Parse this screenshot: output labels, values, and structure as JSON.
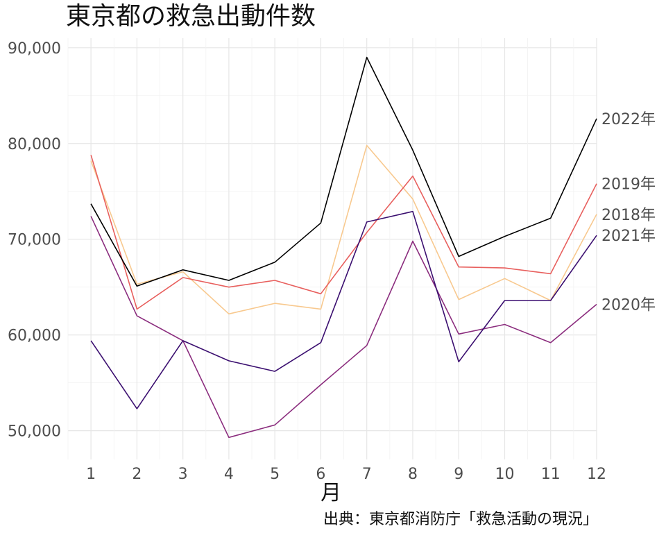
{
  "chart_data": {
    "type": "line",
    "title": "東京都の救急出動件数",
    "xlabel": "月",
    "ylabel": "",
    "caption": "出典：東京都消防庁「救急活動の現況」",
    "x": [
      1,
      2,
      3,
      4,
      5,
      6,
      7,
      8,
      9,
      10,
      11,
      12
    ],
    "x_tick_labels": [
      "1",
      "2",
      "3",
      "4",
      "5",
      "6",
      "7",
      "8",
      "9",
      "10",
      "11",
      "12"
    ],
    "xlim": [
      0.5,
      12
    ],
    "ylim": [
      47000,
      91000
    ],
    "y_ticks": [
      50000,
      60000,
      70000,
      80000,
      90000
    ],
    "y_tick_labels": [
      "50,000",
      "60,000",
      "70,000",
      "80,000",
      "90,000"
    ],
    "grid": true,
    "legend": "direct labels at right end of lines",
    "series": [
      {
        "name": "2018年",
        "color": "#f8c98f",
        "values": [
          78200,
          65300,
          66600,
          62200,
          63300,
          62700,
          79800,
          74200,
          63700,
          65900,
          63600,
          72600
        ]
      },
      {
        "name": "2019年",
        "color": "#e8605e",
        "values": [
          78800,
          62700,
          66000,
          65000,
          65700,
          64300,
          70700,
          76600,
          67100,
          67000,
          66400,
          75800
        ]
      },
      {
        "name": "2020年",
        "color": "#8b2d7e",
        "values": [
          72400,
          62000,
          59400,
          49300,
          50600,
          54800,
          58900,
          69800,
          60100,
          61100,
          59200,
          63200
        ]
      },
      {
        "name": "2021年",
        "color": "#3b0f70",
        "values": [
          59400,
          52300,
          59400,
          57300,
          56200,
          59200,
          71800,
          72900,
          57200,
          63600,
          63600,
          70400
        ]
      },
      {
        "name": "2022年",
        "color": "#000000",
        "values": [
          73700,
          65100,
          66800,
          65700,
          67600,
          71700,
          89000,
          79300,
          68200,
          70300,
          72200,
          82600
        ]
      }
    ]
  }
}
